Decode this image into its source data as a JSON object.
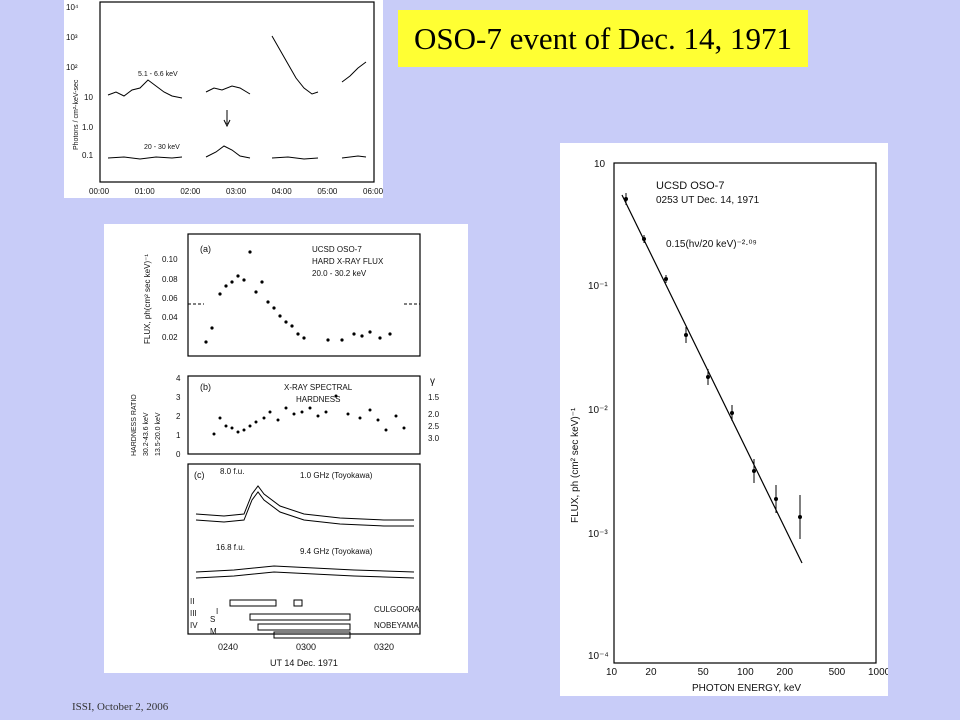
{
  "slide": {
    "title": "OSO-7 event of Dec. 14, 1971",
    "footer": "ISSI, October 2, 2006",
    "background": "#c8ccf8",
    "title_bg": "#ffff33"
  },
  "figures": {
    "top_left": {
      "ylabel": "Photons / cm²-keV-sec",
      "yticks": [
        "10⁴",
        "10³",
        "10²",
        "10",
        "1.0",
        "0.1"
      ],
      "xticks": [
        "00:00",
        "01:00",
        "02:00",
        "03:00",
        "04:00",
        "05:00",
        "06:00"
      ],
      "label_low": "5.1 - 6.6 keV",
      "label_high": "20 - 30 keV"
    },
    "middle": {
      "a": {
        "panel": "(a)",
        "lines": [
          "UCSD OSO-7",
          "HARD X-RAY FLUX",
          "20.0 - 30.2 keV"
        ],
        "ylabel": "FLUX, ph(cm² sec keV)⁻¹",
        "yticks": [
          "0.10",
          "0.08",
          "0.06",
          "0.04",
          "0.02"
        ]
      },
      "b": {
        "panel": "(b)",
        "lines": [
          "X-RAY SPECTRAL",
          "HARDNESS"
        ],
        "ylabel_lines": [
          "HARDNESS RATIO",
          "30.2-43.6 keV",
          "13.5-20.0 keV"
        ],
        "yticks": [
          "4",
          "3",
          "2",
          "1",
          "0"
        ],
        "gamma": "γ",
        "gamma_ticks": [
          "1.5",
          "2.0",
          "2.5",
          "3.0"
        ]
      },
      "c": {
        "panel": "(c)",
        "fu1": "8.0 f.u.",
        "ghz1": "1.0 GHz (Toyokawa)",
        "fu2": "16.8 f.u.",
        "ghz2": "9.4 GHz (Toyokawa)",
        "roman": [
          "II",
          "III",
          "IV"
        ],
        "s_label": "S",
        "m_label": "M",
        "i_label": "I",
        "culgoora": "CULGOORA",
        "nobeyama": "NOBEYAMA"
      },
      "xticks": [
        "0240",
        "0300",
        "0320"
      ],
      "xlabel": "UT 14 Dec. 1971"
    },
    "right": {
      "lines": [
        "UCSD OSO-7",
        "0253 UT Dec. 14, 1971"
      ],
      "fit": "0.15(hν/20 keV)⁻²·⁰⁹",
      "ylabel": "FLUX, ph (cm² sec keV)⁻¹",
      "xlabel": "PHOTON ENERGY, keV",
      "yticks": [
        "10",
        "10⁻¹",
        "10⁻²",
        "10⁻³",
        "10⁻⁴"
      ],
      "xticks": [
        "10",
        "20",
        "50",
        "100",
        "200",
        "500",
        "1000"
      ]
    }
  }
}
